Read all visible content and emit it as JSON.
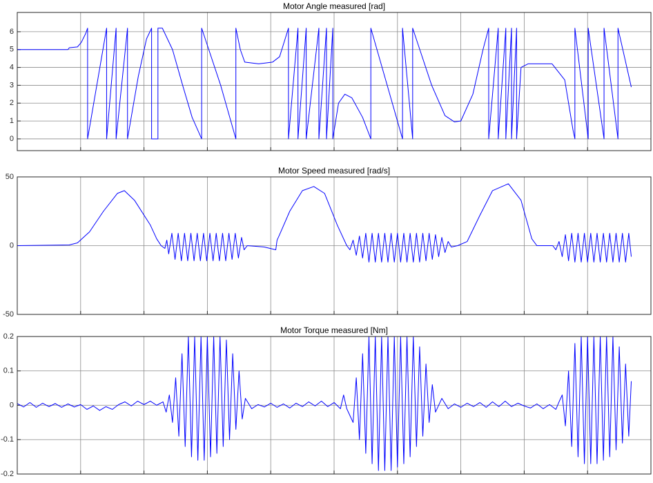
{
  "chart_data": [
    {
      "type": "line",
      "title": "Motor Angle measured [rad]",
      "color": "#0000ff",
      "grid": true,
      "xlim": [
        0,
        10
      ],
      "xticks": [
        1,
        2,
        3,
        4,
        5,
        6,
        7,
        8,
        9
      ],
      "ylim": [
        -0.66,
        7.08
      ],
      "yticks": [
        0,
        1,
        2,
        3,
        4,
        5,
        6
      ],
      "x": [
        0,
        0.8,
        0.82,
        0.95,
        1.01,
        1.08,
        1.11,
        1.11,
        1.41,
        1.41,
        1.56,
        1.56,
        1.74,
        1.74,
        1.91,
        2.04,
        2.12,
        2.12,
        2.22,
        2.22,
        2.29,
        2.45,
        2.61,
        2.76,
        2.91,
        2.91,
        3.21,
        3.45,
        3.45,
        3.52,
        3.59,
        3.81,
        4.03,
        4.14,
        4.28,
        4.28,
        4.43,
        4.43,
        4.56,
        4.56,
        4.76,
        4.76,
        4.88,
        4.88,
        4.98,
        4.98,
        5.07,
        5.17,
        5.28,
        5.45,
        5.58,
        5.58,
        6.08,
        6.08,
        6.24,
        6.24,
        6.54,
        6.75,
        6.9,
        7.0,
        7.19,
        7.35,
        7.44,
        7.44,
        7.59,
        7.59,
        7.71,
        7.71,
        7.8,
        7.8,
        7.88,
        7.88,
        7.95,
        8.06,
        8.44,
        8.64,
        8.77,
        8.8,
        8.8,
        9.01,
        9.01,
        9.26,
        9.26,
        9.48,
        9.48,
        9.69
      ],
      "values": [
        5,
        5,
        5.1,
        5.15,
        5.4,
        5.9,
        6.2,
        0,
        6.2,
        0,
        6.2,
        0,
        6.2,
        0,
        3.5,
        5.6,
        6.2,
        0,
        0,
        6.2,
        6.2,
        5,
        3,
        1.2,
        0,
        6.2,
        3,
        0,
        6.2,
        5,
        4.3,
        4.2,
        4.3,
        4.6,
        6.2,
        0,
        6.2,
        0,
        6.2,
        0,
        6.2,
        0,
        6.2,
        0,
        6.2,
        0,
        2,
        2.5,
        2.3,
        1.2,
        0,
        6.2,
        0,
        6.2,
        0,
        6.2,
        3,
        1.3,
        0.95,
        1,
        2.5,
        5,
        6.2,
        0,
        6.2,
        0,
        6.2,
        0,
        6.2,
        0,
        6.2,
        0,
        4,
        4.2,
        4.2,
        3.3,
        0.5,
        0,
        6.2,
        0,
        6.2,
        0,
        6.2,
        0,
        6.2,
        2.9
      ]
    },
    {
      "type": "line",
      "title": "Motor Speed measured [rad/s]",
      "color": "#0000ff",
      "grid": true,
      "xlim": [
        0,
        10
      ],
      "xticks": [
        1,
        2,
        3,
        4,
        5,
        6,
        7,
        8,
        9
      ],
      "ylim": [
        -50,
        50
      ],
      "yticks": [
        -50,
        0,
        50
      ],
      "x": [
        0,
        0.82,
        0.95,
        1.14,
        1.36,
        1.58,
        1.69,
        1.85,
        2.1,
        2.2,
        2.27,
        2.33,
        2.36,
        2.39,
        2.44,
        2.49,
        2.54,
        2.59,
        2.64,
        2.69,
        2.74,
        2.79,
        2.84,
        2.89,
        2.94,
        2.99,
        3.04,
        3.09,
        3.14,
        3.19,
        3.24,
        3.29,
        3.34,
        3.39,
        3.44,
        3.49,
        3.54,
        3.58,
        3.63,
        3.9,
        4.08,
        4.1,
        4.14,
        4.3,
        4.5,
        4.68,
        4.85,
        5.05,
        5.2,
        5.25,
        5.3,
        5.35,
        5.4,
        5.45,
        5.5,
        5.55,
        5.6,
        5.65,
        5.7,
        5.75,
        5.8,
        5.85,
        5.9,
        5.95,
        6.0,
        6.05,
        6.1,
        6.15,
        6.2,
        6.25,
        6.3,
        6.35,
        6.4,
        6.45,
        6.5,
        6.55,
        6.6,
        6.65,
        6.7,
        6.75,
        6.8,
        6.85,
        6.95,
        7.1,
        7.3,
        7.5,
        7.75,
        7.95,
        8.12,
        8.2,
        8.45,
        8.5,
        8.55,
        8.6,
        8.65,
        8.7,
        8.75,
        8.8,
        8.85,
        8.9,
        8.95,
        9.0,
        9.05,
        9.1,
        9.15,
        9.2,
        9.25,
        9.3,
        9.35,
        9.4,
        9.45,
        9.5,
        9.55,
        9.6,
        9.65,
        9.69
      ],
      "values": [
        0,
        0.5,
        2,
        10,
        25,
        38,
        40,
        33,
        15,
        5,
        0,
        -2,
        4,
        -6,
        9,
        -10,
        9,
        -11,
        9,
        -11,
        9,
        -11,
        9,
        -11,
        9,
        -11,
        9,
        -11,
        9,
        -11,
        9,
        -11,
        9,
        -10,
        9,
        -9,
        6,
        -3,
        0,
        -1,
        -3,
        4,
        8,
        25,
        40,
        43,
        38,
        15,
        0,
        -3,
        4,
        -7,
        7,
        -9,
        9,
        -12,
        9,
        -12,
        9,
        -12,
        9,
        -12,
        9,
        -12,
        9,
        -12,
        9,
        -12,
        9,
        -12,
        9,
        -12,
        9,
        -11,
        9,
        -10,
        8,
        -8,
        6,
        -5,
        3,
        -1,
        0,
        3,
        22,
        40,
        45,
        33,
        5,
        0,
        0,
        -3,
        3,
        -8,
        8,
        -11,
        9,
        -12,
        9,
        -12,
        9,
        -12,
        9,
        -12,
        9,
        -12,
        9,
        -12,
        9,
        -12,
        9,
        -12,
        9,
        -12,
        9,
        -8
      ]
    },
    {
      "type": "line",
      "title": "Motor Torque measured [Nm]",
      "color": "#0000ff",
      "grid": true,
      "xlim": [
        0,
        10
      ],
      "xticks": [
        1,
        2,
        3,
        4,
        5,
        6,
        7,
        8,
        9
      ],
      "ylim": [
        -0.2,
        0.2
      ],
      "yticks": [
        -0.2,
        -0.1,
        0,
        0.1,
        0.2
      ],
      "x": [
        0,
        0.1,
        0.2,
        0.3,
        0.4,
        0.5,
        0.6,
        0.7,
        0.8,
        0.9,
        1.0,
        1.1,
        1.2,
        1.3,
        1.4,
        1.5,
        1.6,
        1.7,
        1.8,
        1.9,
        2.0,
        2.1,
        2.2,
        2.3,
        2.35,
        2.4,
        2.45,
        2.5,
        2.55,
        2.6,
        2.65,
        2.7,
        2.75,
        2.8,
        2.85,
        2.9,
        2.95,
        3.0,
        3.05,
        3.1,
        3.15,
        3.2,
        3.25,
        3.3,
        3.35,
        3.4,
        3.45,
        3.5,
        3.55,
        3.6,
        3.7,
        3.8,
        3.9,
        4.0,
        4.1,
        4.2,
        4.3,
        4.4,
        4.5,
        4.6,
        4.7,
        4.8,
        4.9,
        5.0,
        5.1,
        5.15,
        5.2,
        5.3,
        5.35,
        5.4,
        5.45,
        5.5,
        5.55,
        5.6,
        5.65,
        5.7,
        5.75,
        5.8,
        5.85,
        5.9,
        5.95,
        6.0,
        6.05,
        6.1,
        6.15,
        6.2,
        6.25,
        6.3,
        6.35,
        6.4,
        6.45,
        6.5,
        6.55,
        6.6,
        6.7,
        6.8,
        6.9,
        7.0,
        7.1,
        7.2,
        7.3,
        7.4,
        7.5,
        7.6,
        7.7,
        7.8,
        7.9,
        8.0,
        8.1,
        8.2,
        8.3,
        8.4,
        8.5,
        8.55,
        8.6,
        8.65,
        8.7,
        8.75,
        8.8,
        8.85,
        8.9,
        8.95,
        9.0,
        9.05,
        9.1,
        9.15,
        9.2,
        9.25,
        9.3,
        9.35,
        9.4,
        9.45,
        9.5,
        9.55,
        9.6,
        9.65,
        9.69
      ],
      "values": [
        0.005,
        -0.005,
        0.008,
        -0.006,
        0.006,
        -0.004,
        0.005,
        -0.006,
        0.004,
        -0.005,
        0.002,
        -0.012,
        -0.002,
        -0.015,
        -0.004,
        -0.012,
        0.002,
        0.01,
        -0.002,
        0.012,
        0.002,
        0.012,
        0,
        0.01,
        -0.02,
        0.03,
        -0.05,
        0.08,
        -0.09,
        0.15,
        -0.12,
        0.2,
        -0.15,
        0.2,
        -0.16,
        0.2,
        -0.16,
        0.2,
        -0.15,
        0.2,
        -0.14,
        0.2,
        -0.12,
        0.19,
        -0.1,
        0.15,
        -0.07,
        0.1,
        -0.04,
        0.02,
        -0.01,
        0.002,
        -0.005,
        0.006,
        -0.006,
        0.004,
        -0.008,
        0.006,
        -0.004,
        0.01,
        -0.002,
        0.012,
        -0.004,
        0.008,
        -0.01,
        0.03,
        -0.01,
        -0.05,
        0.08,
        -0.1,
        0.15,
        -0.14,
        0.2,
        -0.17,
        0.2,
        -0.19,
        0.2,
        -0.19,
        0.2,
        -0.19,
        0.2,
        -0.18,
        0.2,
        -0.17,
        0.2,
        -0.15,
        0.2,
        -0.12,
        0.17,
        -0.09,
        0.12,
        -0.05,
        0.06,
        -0.02,
        0.02,
        -0.01,
        0.004,
        -0.006,
        0.006,
        -0.004,
        0.008,
        -0.006,
        0.01,
        -0.004,
        0.012,
        -0.004,
        0.006,
        -0.002,
        -0.008,
        0.004,
        -0.01,
        0.002,
        -0.012,
        0.01,
        0.03,
        -0.06,
        0.1,
        -0.12,
        0.18,
        -0.15,
        0.2,
        -0.17,
        0.2,
        -0.17,
        0.2,
        -0.17,
        0.2,
        -0.16,
        0.2,
        -0.15,
        0.2,
        -0.13,
        0.17,
        -0.11,
        0.12,
        -0.09,
        0.07
      ]
    }
  ]
}
